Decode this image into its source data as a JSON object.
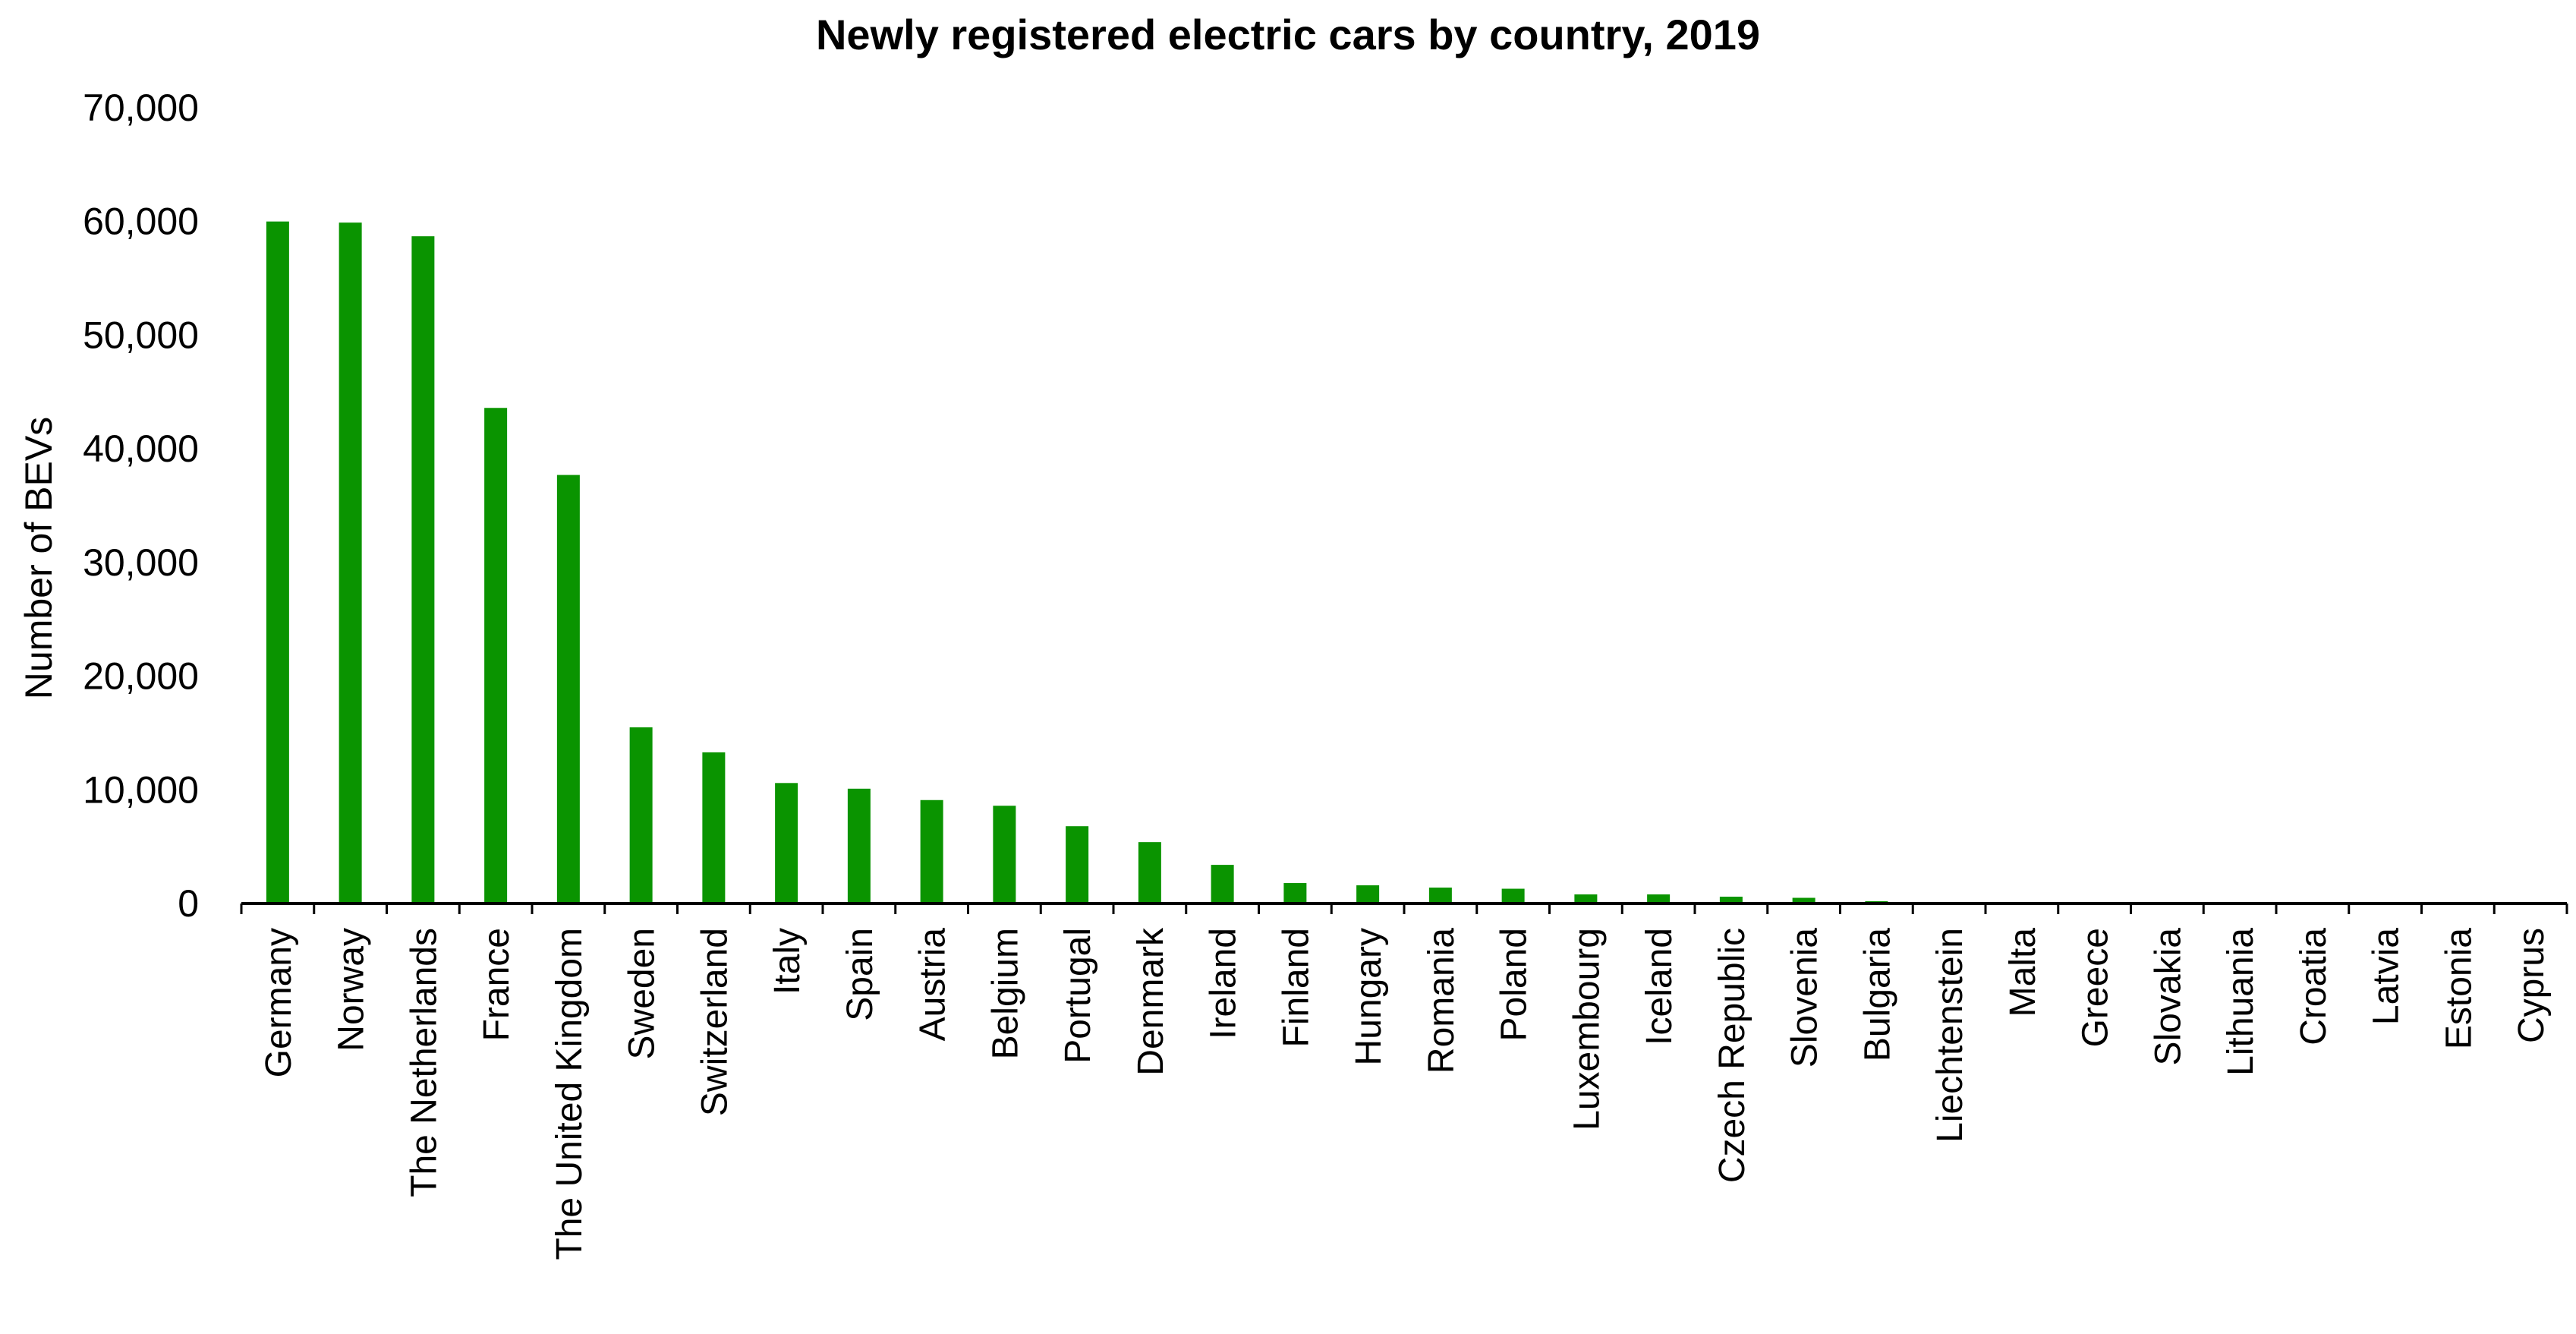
{
  "chart_data": {
    "type": "bar",
    "title": "Newly registered electric cars by country, 2019",
    "xlabel": "",
    "ylabel": "Number of BEVs",
    "ylim": [
      0,
      70000
    ],
    "yticks": [
      0,
      10000,
      20000,
      30000,
      40000,
      50000,
      60000,
      70000
    ],
    "ytick_labels": [
      "0",
      "10,000",
      "20,000",
      "30,000",
      "40,000",
      "50,000",
      "60,000",
      "70,000"
    ],
    "grid": false,
    "bar_color": "#0a9400",
    "categories": [
      "Germany",
      "Norway",
      "The Netherlands",
      "France",
      "The United Kingdom",
      "Sweden",
      "Switzerland",
      "Italy",
      "Spain",
      "Austria",
      "Belgium",
      "Portugal",
      "Denmark",
      "Ireland",
      "Finland",
      "Hungary",
      "Romania",
      "Poland",
      "Luxembourg",
      "Iceland",
      "Czech Republic",
      "Slovenia",
      "Bulgaria",
      "Liechtenstein",
      "Malta",
      "Greece",
      "Slovakia",
      "Lithuania",
      "Croatia",
      "Latvia",
      "Estonia",
      "Cyprus"
    ],
    "values": [
      60000,
      59900,
      58700,
      43600,
      37700,
      15500,
      13300,
      10600,
      10100,
      9100,
      8600,
      6800,
      5400,
      3400,
      1800,
      1600,
      1400,
      1300,
      800,
      800,
      600,
      500,
      200,
      100,
      60,
      60,
      50,
      40,
      30,
      20,
      20,
      10
    ]
  }
}
